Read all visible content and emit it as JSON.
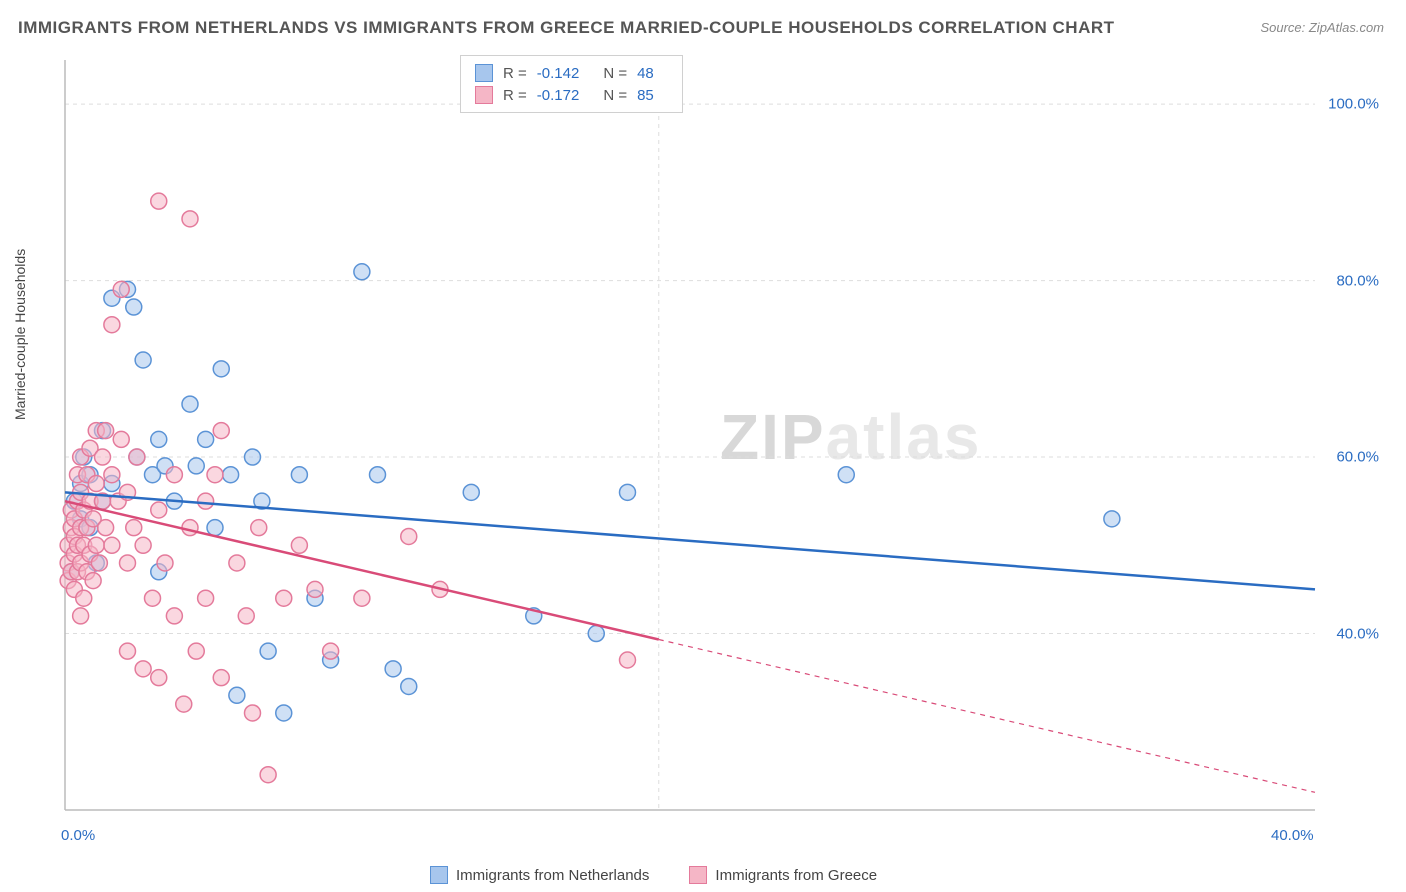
{
  "title": "IMMIGRANTS FROM NETHERLANDS VS IMMIGRANTS FROM GREECE MARRIED-COUPLE HOUSEHOLDS CORRELATION CHART",
  "source": "Source: ZipAtlas.com",
  "watermark_a": "ZIP",
  "watermark_b": "atlas",
  "y_axis_label": "Married-couple Households",
  "chart": {
    "type": "scatter",
    "x_domain": [
      0,
      40
    ],
    "y_domain": [
      20,
      105
    ],
    "x_ticks": [
      {
        "v": 0,
        "label": "0.0%"
      },
      {
        "v": 40,
        "label": "40.0%"
      }
    ],
    "y_ticks": [
      {
        "v": 40,
        "label": "40.0%"
      },
      {
        "v": 60,
        "label": "60.0%"
      },
      {
        "v": 80,
        "label": "80.0%"
      },
      {
        "v": 100,
        "label": "100.0%"
      }
    ],
    "grid_color": "#dddddd",
    "axis_color": "#bbbbbb",
    "background": "#ffffff",
    "marker_radius": 8,
    "marker_stroke_width": 1.5,
    "trend_stroke_width": 2.5,
    "series": [
      {
        "name": "Immigrants from Netherlands",
        "legend_label": "Immigrants from Netherlands",
        "fill": "#a7c6ed",
        "fill_opacity": 0.55,
        "stroke": "#5b93d6",
        "trend_color": "#2a6cc2",
        "R": "-0.142",
        "N": "48",
        "trend": {
          "x1": 0,
          "y1": 56,
          "x2": 40,
          "y2": 45,
          "solid_until_x": 40
        },
        "points": [
          [
            0.2,
            47
          ],
          [
            0.3,
            55
          ],
          [
            0.5,
            53
          ],
          [
            0.5,
            57
          ],
          [
            0.6,
            60
          ],
          [
            0.8,
            52
          ],
          [
            0.8,
            58
          ],
          [
            1.0,
            48
          ],
          [
            1.2,
            63
          ],
          [
            1.2,
            55
          ],
          [
            1.5,
            57
          ],
          [
            1.5,
            78
          ],
          [
            2.0,
            79
          ],
          [
            2.2,
            77
          ],
          [
            2.3,
            60
          ],
          [
            2.5,
            71
          ],
          [
            2.8,
            58
          ],
          [
            3.0,
            62
          ],
          [
            3.0,
            47
          ],
          [
            3.2,
            59
          ],
          [
            3.5,
            55
          ],
          [
            4.0,
            66
          ],
          [
            4.2,
            59
          ],
          [
            4.5,
            62
          ],
          [
            4.8,
            52
          ],
          [
            5.0,
            70
          ],
          [
            5.3,
            58
          ],
          [
            5.5,
            33
          ],
          [
            6.0,
            60
          ],
          [
            6.3,
            55
          ],
          [
            6.5,
            38
          ],
          [
            7.0,
            31
          ],
          [
            7.5,
            58
          ],
          [
            8.0,
            44
          ],
          [
            8.5,
            37
          ],
          [
            9.5,
            81
          ],
          [
            10.0,
            58
          ],
          [
            10.5,
            36
          ],
          [
            11.0,
            34
          ],
          [
            13.0,
            56
          ],
          [
            15.0,
            42
          ],
          [
            17.0,
            40
          ],
          [
            18.0,
            56
          ],
          [
            25.0,
            58
          ],
          [
            33.5,
            53
          ]
        ]
      },
      {
        "name": "Immigrants from Greece",
        "legend_label": "Immigrants from Greece",
        "fill": "#f5b6c6",
        "fill_opacity": 0.55,
        "stroke": "#e47a9b",
        "trend_color": "#d94b78",
        "R": "-0.172",
        "N": "85",
        "trend": {
          "x1": 0,
          "y1": 55,
          "x2": 40,
          "y2": 22,
          "solid_until_x": 19
        },
        "points": [
          [
            0.1,
            46
          ],
          [
            0.1,
            48
          ],
          [
            0.1,
            50
          ],
          [
            0.2,
            47
          ],
          [
            0.2,
            52
          ],
          [
            0.2,
            54
          ],
          [
            0.3,
            45
          ],
          [
            0.3,
            49
          ],
          [
            0.3,
            51
          ],
          [
            0.3,
            53
          ],
          [
            0.4,
            47
          ],
          [
            0.4,
            50
          ],
          [
            0.4,
            55
          ],
          [
            0.4,
            58
          ],
          [
            0.5,
            42
          ],
          [
            0.5,
            48
          ],
          [
            0.5,
            52
          ],
          [
            0.5,
            56
          ],
          [
            0.5,
            60
          ],
          [
            0.6,
            44
          ],
          [
            0.6,
            50
          ],
          [
            0.6,
            54
          ],
          [
            0.7,
            47
          ],
          [
            0.7,
            52
          ],
          [
            0.7,
            58
          ],
          [
            0.8,
            49
          ],
          [
            0.8,
            55
          ],
          [
            0.8,
            61
          ],
          [
            0.9,
            46
          ],
          [
            0.9,
            53
          ],
          [
            1.0,
            50
          ],
          [
            1.0,
            57
          ],
          [
            1.0,
            63
          ],
          [
            1.1,
            48
          ],
          [
            1.2,
            55
          ],
          [
            1.2,
            60
          ],
          [
            1.3,
            52
          ],
          [
            1.3,
            63
          ],
          [
            1.5,
            50
          ],
          [
            1.5,
            58
          ],
          [
            1.5,
            75
          ],
          [
            1.7,
            55
          ],
          [
            1.8,
            62
          ],
          [
            1.8,
            79
          ],
          [
            2.0,
            48
          ],
          [
            2.0,
            56
          ],
          [
            2.0,
            38
          ],
          [
            2.2,
            52
          ],
          [
            2.3,
            60
          ],
          [
            2.5,
            36
          ],
          [
            2.5,
            50
          ],
          [
            2.8,
            44
          ],
          [
            3.0,
            89
          ],
          [
            3.0,
            54
          ],
          [
            3.0,
            35
          ],
          [
            3.2,
            48
          ],
          [
            3.5,
            42
          ],
          [
            3.5,
            58
          ],
          [
            3.8,
            32
          ],
          [
            4.0,
            87
          ],
          [
            4.0,
            52
          ],
          [
            4.2,
            38
          ],
          [
            4.5,
            55
          ],
          [
            4.5,
            44
          ],
          [
            4.8,
            58
          ],
          [
            5.0,
            63
          ],
          [
            5.0,
            35
          ],
          [
            5.5,
            48
          ],
          [
            5.8,
            42
          ],
          [
            6.0,
            31
          ],
          [
            6.2,
            52
          ],
          [
            6.5,
            24
          ],
          [
            7.0,
            44
          ],
          [
            7.5,
            50
          ],
          [
            8.0,
            45
          ],
          [
            8.5,
            38
          ],
          [
            9.5,
            44
          ],
          [
            11.0,
            51
          ],
          [
            12.0,
            45
          ],
          [
            18.0,
            37
          ]
        ]
      }
    ]
  },
  "stat_box": {
    "R_label": "R =",
    "N_label": "N ="
  }
}
